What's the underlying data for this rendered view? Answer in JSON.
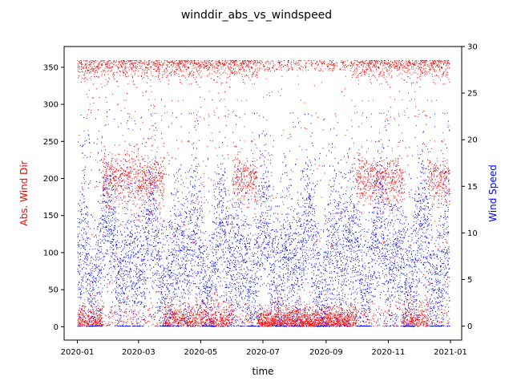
{
  "chart_data": {
    "type": "scatter",
    "title": "winddir_abs_vs_windspeed",
    "xlabel": "time",
    "x_range": [
      "2019-12-19",
      "2021-01-12"
    ],
    "x_ticks": [
      "2020-01",
      "2020-03",
      "2020-05",
      "2020-07",
      "2020-09",
      "2020-11",
      "2021-01"
    ],
    "y_left": {
      "label": "Abs. Wind Dir",
      "color": "#ff0000",
      "range": [
        -18,
        378
      ],
      "ticks": [
        0,
        50,
        100,
        150,
        200,
        250,
        300,
        350
      ]
    },
    "y_right": {
      "label": "Wind Speed",
      "color": "#0000ff",
      "range": [
        -1.5,
        30
      ],
      "ticks": [
        0,
        5,
        10,
        15,
        20,
        25,
        30
      ]
    },
    "grid": false,
    "series": [
      {
        "axis": "left",
        "color": "#ff0000",
        "x_start": "2020-01-01",
        "x_end": "2020-12-31",
        "value_range": [
          0,
          360
        ],
        "clusters": [
          {
            "name_hint": "near-north low",
            "y_range": [
              0,
              50
            ]
          },
          {
            "name_hint": "near-north high",
            "y_range": [
              330,
              360
            ]
          },
          {
            "name_hint": "southwest band",
            "y_range": [
              170,
              240
            ]
          }
        ]
      },
      {
        "axis": "right",
        "color": "#0000ff",
        "x_start": "2020-01-01",
        "x_end": "2020-12-31",
        "value_range": [
          0,
          26
        ],
        "typical_range": [
          2,
          16
        ]
      }
    ]
  }
}
